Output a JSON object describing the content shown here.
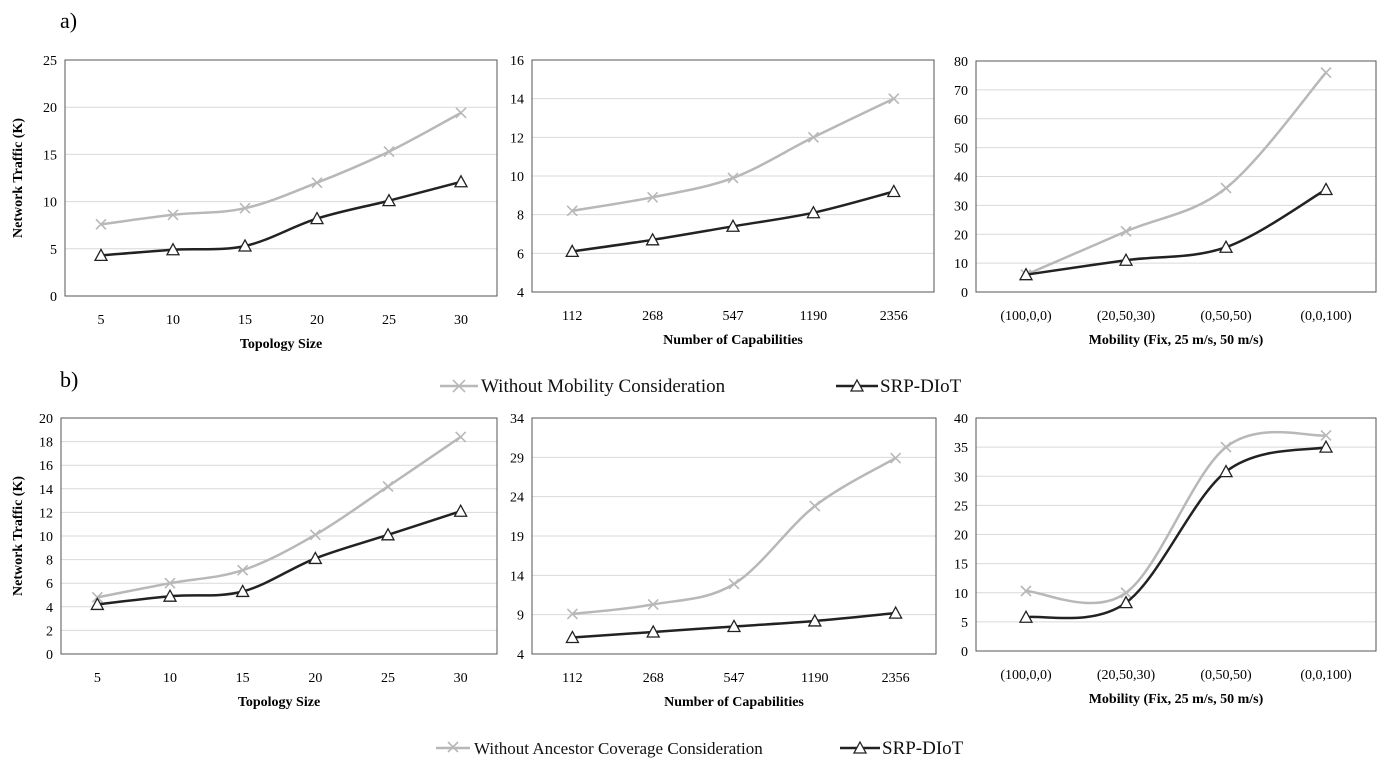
{
  "panels": [
    {
      "label": "a)"
    },
    {
      "label": "b)"
    }
  ],
  "legends": [
    {
      "series": [
        {
          "name": "Without Mobility Consideration",
          "color": "#b8b8b8",
          "marker": "x"
        },
        {
          "name": "SRP-DIoT",
          "color": "#222222",
          "marker": "triangle"
        }
      ]
    },
    {
      "series": [
        {
          "name": "Without Ancestor Coverage Consideration",
          "color": "#b8b8b8",
          "marker": "x"
        },
        {
          "name": "SRP-DIoT",
          "color": "#222222",
          "marker": "triangle"
        }
      ]
    }
  ],
  "chart_data": [
    {
      "type": "line",
      "panel": "a)",
      "categories": [
        "5",
        "10",
        "15",
        "20",
        "25",
        "30"
      ],
      "xlabel": "Topology Size",
      "ylabel": "Network Traffic (K)",
      "ylim": [
        0,
        25
      ],
      "yticks": [
        0,
        5,
        10,
        15,
        20,
        25
      ],
      "grid": true,
      "series": [
        {
          "name": "Without Mobility Consideration",
          "values": [
            7.6,
            8.6,
            9.3,
            12.0,
            15.3,
            19.4
          ]
        },
        {
          "name": "SRP-DIoT",
          "values": [
            4.3,
            4.9,
            5.3,
            8.2,
            10.1,
            12.1
          ]
        }
      ]
    },
    {
      "type": "line",
      "panel": "a)",
      "categories": [
        "112",
        "268",
        "547",
        "1190",
        "2356"
      ],
      "xlabel": "Number of Capabilities",
      "ylabel": "",
      "ylim": [
        4,
        16
      ],
      "yticks": [
        4,
        6,
        8,
        10,
        12,
        14,
        16
      ],
      "grid": true,
      "series": [
        {
          "name": "Without Mobility Consideration",
          "values": [
            8.2,
            8.9,
            9.9,
            12.0,
            14.0
          ]
        },
        {
          "name": "SRP-DIoT",
          "values": [
            6.1,
            6.7,
            7.4,
            8.1,
            9.2
          ]
        }
      ]
    },
    {
      "type": "line",
      "panel": "a)",
      "categories": [
        "(100,0,0)",
        "(20,50,30)",
        "(0,50,50)",
        "(0,0,100)"
      ],
      "xlabel": "Mobility (Fix, 25 m/s, 50 m/s)",
      "ylabel": "",
      "ylim": [
        0,
        80
      ],
      "yticks": [
        0,
        10,
        20,
        30,
        40,
        50,
        60,
        70,
        80
      ],
      "grid": true,
      "series": [
        {
          "name": "Without Mobility Consideration",
          "values": [
            6,
            21,
            36,
            76
          ]
        },
        {
          "name": "SRP-DIoT",
          "values": [
            6,
            11,
            15.5,
            35.5
          ]
        }
      ]
    },
    {
      "type": "line",
      "panel": "b)",
      "categories": [
        "5",
        "10",
        "15",
        "20",
        "25",
        "30"
      ],
      "xlabel": "Topology Size",
      "ylabel": "Network Traffic (K)",
      "ylim": [
        0,
        20
      ],
      "yticks": [
        0,
        2,
        4,
        6,
        8,
        10,
        12,
        14,
        16,
        18,
        20
      ],
      "grid": true,
      "series": [
        {
          "name": "Without Ancestor Coverage Consideration",
          "values": [
            4.8,
            6.0,
            7.1,
            10.1,
            14.2,
            18.4
          ]
        },
        {
          "name": "SRP-DIoT",
          "values": [
            4.2,
            4.9,
            5.3,
            8.1,
            10.1,
            12.1
          ]
        }
      ]
    },
    {
      "type": "line",
      "panel": "b)",
      "categories": [
        "112",
        "268",
        "547",
        "1190",
        "2356"
      ],
      "xlabel": "Number of Capabilities",
      "ylabel": "",
      "ylim": [
        4,
        34
      ],
      "yticks": [
        4,
        9,
        14,
        19,
        24,
        29,
        34
      ],
      "grid": true,
      "series": [
        {
          "name": "Without Ancestor Coverage Consideration",
          "values": [
            9.1,
            10.3,
            12.9,
            22.8,
            28.9
          ]
        },
        {
          "name": "SRP-DIoT",
          "values": [
            6.1,
            6.8,
            7.5,
            8.2,
            9.2
          ]
        }
      ]
    },
    {
      "type": "line",
      "panel": "b)",
      "categories": [
        "(100,0,0)",
        "(20,50,30)",
        "(0,50,50)",
        "(0,0,100)"
      ],
      "xlabel": "Mobility (Fix, 25 m/s, 50 m/s)",
      "ylabel": "",
      "ylim": [
        0,
        40
      ],
      "yticks": [
        0,
        5,
        10,
        15,
        20,
        25,
        30,
        35,
        40
      ],
      "grid": true,
      "series": [
        {
          "name": "Without Ancestor Coverage Consideration",
          "values": [
            10.3,
            10.0,
            35.0,
            37.0
          ]
        },
        {
          "name": "SRP-DIoT",
          "values": [
            5.8,
            8.3,
            30.8,
            35.0
          ]
        }
      ]
    }
  ]
}
